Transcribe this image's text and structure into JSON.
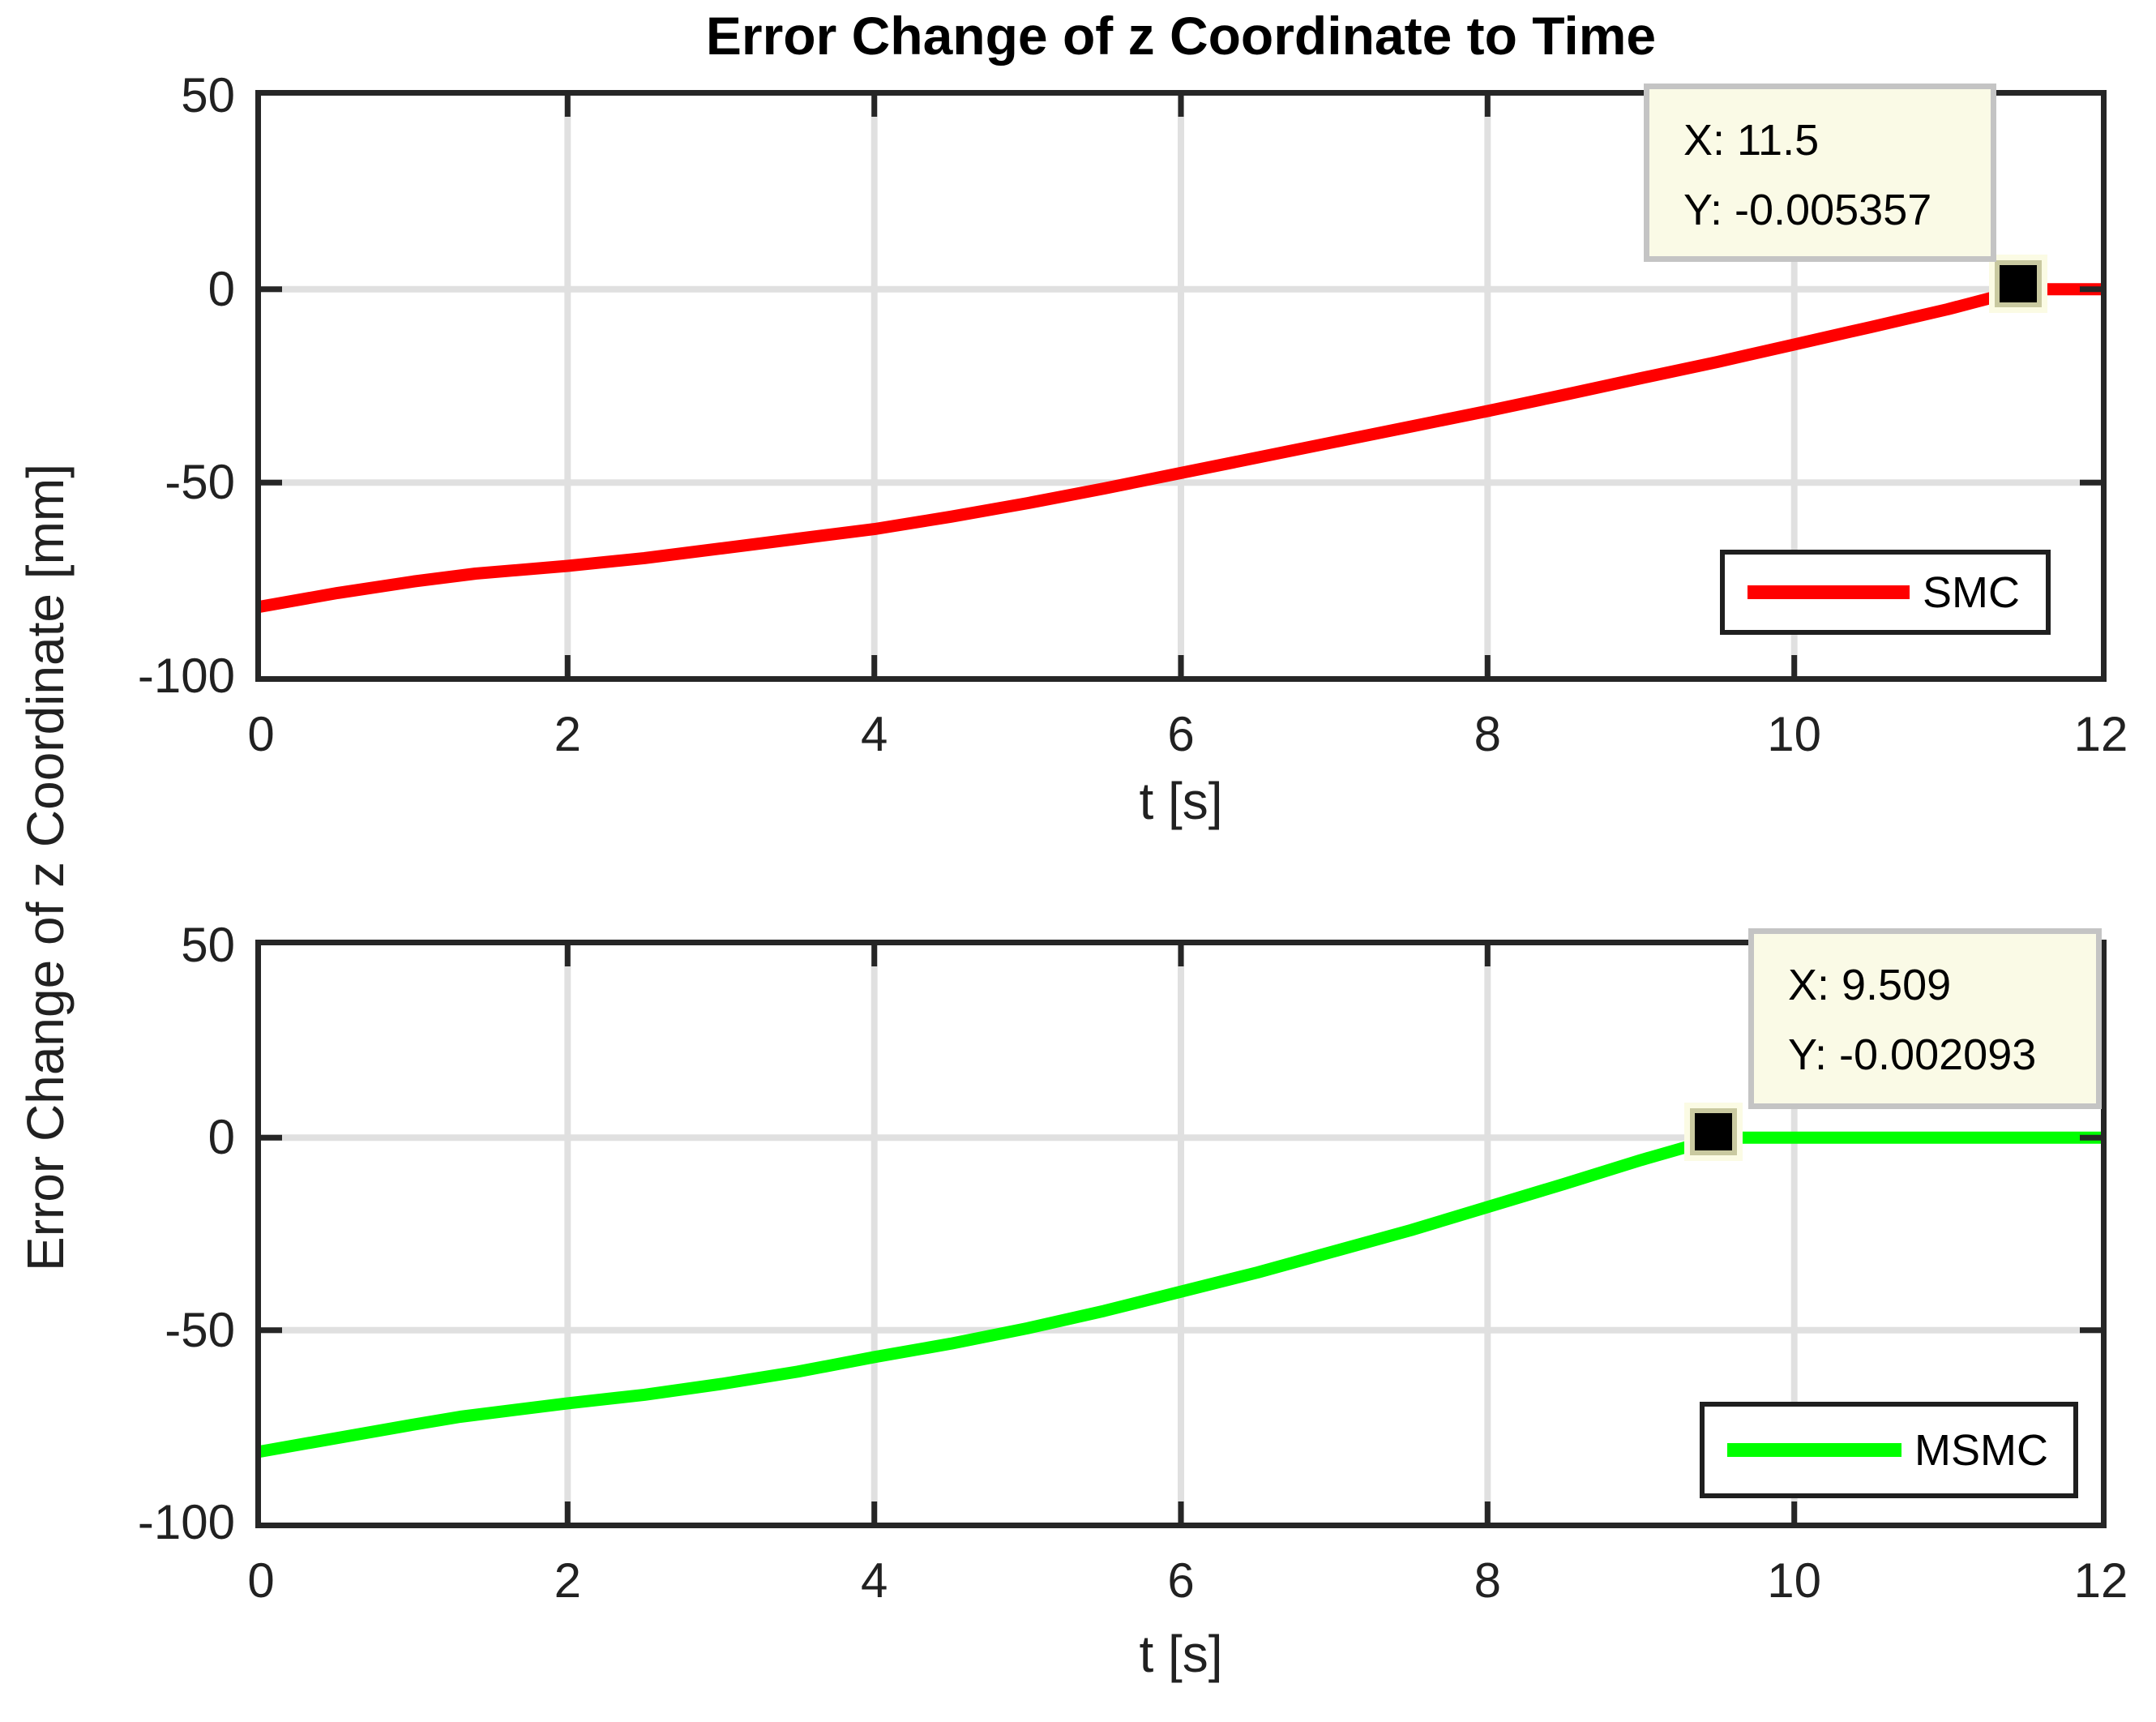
{
  "figure": {
    "ylabel": "Error Change of z Coordinate [mm]",
    "background_color": "#ffffff",
    "axis_color": "#262626",
    "grid_color": "#e0e0e0",
    "text_color": "#212121",
    "datatip_bg_color": "#fafae6",
    "datatip_border_color": "#c4c4c4",
    "marker_color": "#000000",
    "marker_halo_color": "#fbfbe4"
  },
  "chart_data": [
    {
      "type": "line",
      "title": "Error Change of z Coordinate to Time",
      "xlabel": "t [s]",
      "ylabel": "Error Change of z Coordinate [mm]",
      "xlim": [
        0,
        12
      ],
      "ylim": [
        -100,
        50
      ],
      "xticks": [
        0,
        2,
        4,
        6,
        8,
        10,
        12
      ],
      "yticks": [
        50,
        0,
        -50,
        -100
      ],
      "grid": true,
      "legend_position": "lower right",
      "series": [
        {
          "name": "SMC",
          "color": "#ff0000",
          "x": [
            0,
            0.5,
            1,
            1.4,
            2,
            2.5,
            3,
            3.5,
            4,
            4.5,
            5,
            5.5,
            6,
            6.5,
            7,
            7.5,
            8,
            8.5,
            9,
            9.5,
            10,
            10.5,
            11,
            11.5,
            12
          ],
          "y": [
            -82,
            -78.5,
            -75.5,
            -73.5,
            -71.5,
            -69.5,
            -67,
            -64.5,
            -62,
            -58.8,
            -55.3,
            -51.5,
            -47.5,
            -43.5,
            -39.5,
            -35.5,
            -31.5,
            -27.3,
            -23,
            -18.8,
            -14.3,
            -9.8,
            -5.2,
            -0.005357,
            0
          ]
        }
      ],
      "datatip": {
        "x": 11.5,
        "y": -0.005357,
        "x_text": "X: 11.5",
        "y_text": "Y: -0.005357"
      }
    },
    {
      "type": "line",
      "title": "",
      "xlabel": "t [s]",
      "ylabel": "Error Change of z Coordinate [mm]",
      "xlim": [
        0,
        12
      ],
      "ylim": [
        -100,
        50
      ],
      "xticks": [
        0,
        2,
        4,
        6,
        8,
        10,
        12
      ],
      "yticks": [
        50,
        0,
        -50,
        -100
      ],
      "grid": true,
      "legend_position": "lower right",
      "series": [
        {
          "name": "MSMC",
          "color": "#00ff00",
          "x": [
            0,
            0.5,
            1,
            1.3,
            2,
            2.5,
            3,
            3.5,
            4,
            4.5,
            5,
            5.5,
            6,
            6.5,
            7,
            7.5,
            8,
            8.5,
            9,
            9.509,
            10,
            11,
            12
          ],
          "y": [
            -81.5,
            -78,
            -74.5,
            -72.5,
            -69,
            -66.8,
            -64,
            -60.8,
            -57,
            -53.5,
            -49.5,
            -45,
            -40,
            -35,
            -29.5,
            -24,
            -18,
            -12,
            -5.8,
            -0.002093,
            0,
            0,
            0
          ]
        }
      ],
      "datatip": {
        "x": 9.509,
        "y": -0.002093,
        "x_text": "X: 9.509",
        "y_text": "Y: -0.002093"
      }
    }
  ]
}
